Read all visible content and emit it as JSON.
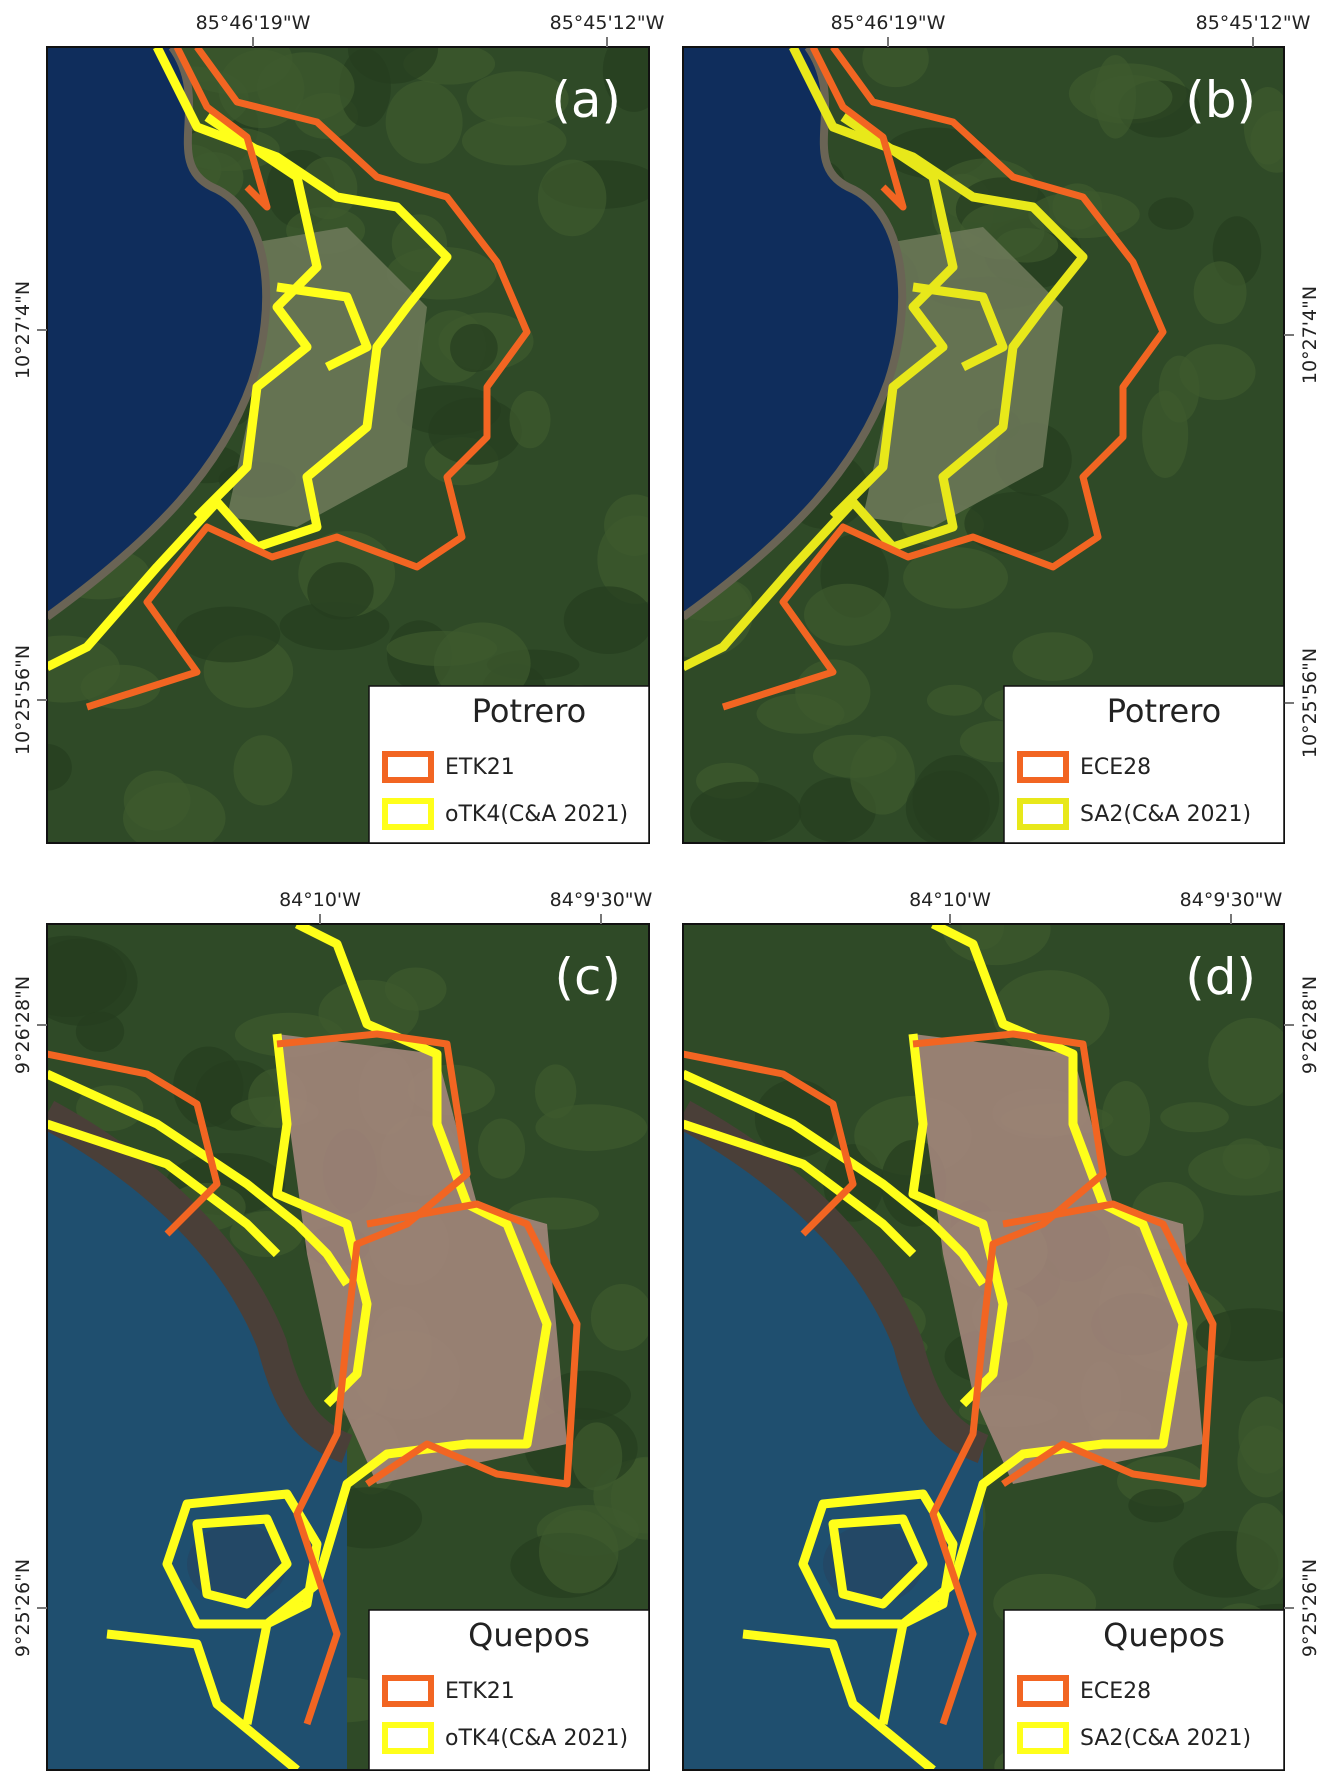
{
  "panels": [
    {
      "label": "(a)",
      "top_ticks": [
        "85°46'19\"W",
        "85°45'12\"W"
      ],
      "side_ticks": [
        "10°27'4\"N",
        "10°25'56\"N"
      ],
      "legend": {
        "title": "Potrero",
        "items": [
          {
            "name": "ETK21",
            "color": "#f26522"
          },
          {
            "name": "oTK4(C&A 2021)",
            "color": "#ffff1a"
          }
        ]
      }
    },
    {
      "label": "(b)",
      "top_ticks": [
        "85°46'19\"W",
        "85°45'12\"W"
      ],
      "side_ticks": [
        "10°27'4\"N",
        "10°25'56\"N"
      ],
      "legend": {
        "title": "Potrero",
        "items": [
          {
            "name": "ECE28",
            "color": "#f26522"
          },
          {
            "name": "SA2(C&A 2021)",
            "color": "#e8e81a"
          }
        ]
      }
    },
    {
      "label": "(c)",
      "top_ticks": [
        "84°10'W",
        "84°9'30\"W"
      ],
      "side_ticks": [
        "9°26'28\"N",
        "9°25'26\"N"
      ],
      "legend": {
        "title": "Quepos",
        "items": [
          {
            "name": "ETK21",
            "color": "#f26522"
          },
          {
            "name": "oTK4(C&A 2021)",
            "color": "#ffff1a"
          }
        ]
      }
    },
    {
      "label": "(d)",
      "top_ticks": [
        "84°10'W",
        "84°9'30\"W"
      ],
      "side_ticks": [
        "9°26'28\"N",
        "9°25'26\"N"
      ],
      "legend": {
        "title": "Quepos",
        "items": [
          {
            "name": "ECE28",
            "color": "#f26522"
          },
          {
            "name": "SA2(C&A 2021)",
            "color": "#ffff1a"
          }
        ]
      }
    }
  ]
}
